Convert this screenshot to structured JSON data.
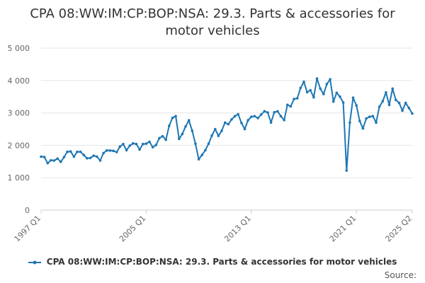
{
  "chart_data": {
    "type": "line",
    "title": "CPA 08:WW:IM:CP:BOP:NSA: 29.3. Parts & accessories for motor vehicles",
    "xlabel": "",
    "ylabel": "",
    "x_start": "1997 Q1",
    "x_end": "2025 Q2",
    "x_ticks": [
      "1997 Q1",
      "2005 Q1",
      "2013 Q1",
      "2021 Q1",
      "2025 Q2"
    ],
    "ylim": [
      0,
      5000
    ],
    "y_ticks": [
      0,
      1000,
      2000,
      3000,
      4000,
      5000
    ],
    "y_tick_labels": [
      "0",
      "1 000",
      "2 000",
      "3 000",
      "4 000",
      "5 000"
    ],
    "grid": "horizontal",
    "legend_position": "bottom",
    "series": [
      {
        "name": "CPA 08:WW:IM:CP:BOP:NSA: 29.3. Parts & accessories for motor vehicles",
        "color": "#1f77b4",
        "values": [
          1650,
          1640,
          1450,
          1540,
          1530,
          1590,
          1490,
          1640,
          1800,
          1810,
          1650,
          1800,
          1800,
          1700,
          1600,
          1610,
          1680,
          1650,
          1530,
          1760,
          1840,
          1840,
          1830,
          1790,
          1960,
          2040,
          1850,
          1990,
          2060,
          2040,
          1870,
          2040,
          2050,
          2110,
          1940,
          2010,
          2220,
          2280,
          2170,
          2600,
          2850,
          2900,
          2200,
          2350,
          2580,
          2770,
          2450,
          2050,
          1570,
          1700,
          1850,
          2050,
          2300,
          2500,
          2290,
          2450,
          2700,
          2650,
          2800,
          2900,
          2960,
          2690,
          2500,
          2770,
          2880,
          2900,
          2840,
          2950,
          3050,
          3010,
          2700,
          3020,
          3050,
          2900,
          2780,
          3250,
          3200,
          3430,
          3450,
          3770,
          3960,
          3640,
          3700,
          3480,
          4060,
          3750,
          3580,
          3890,
          4040,
          3350,
          3620,
          3500,
          3320,
          1220,
          2700,
          3470,
          3230,
          2750,
          2520,
          2830,
          2880,
          2900,
          2700,
          3190,
          3360,
          3630,
          3250,
          3750,
          3400,
          3310,
          3070,
          3310,
          3150,
          2980
        ]
      }
    ]
  },
  "source_label": "Source:"
}
